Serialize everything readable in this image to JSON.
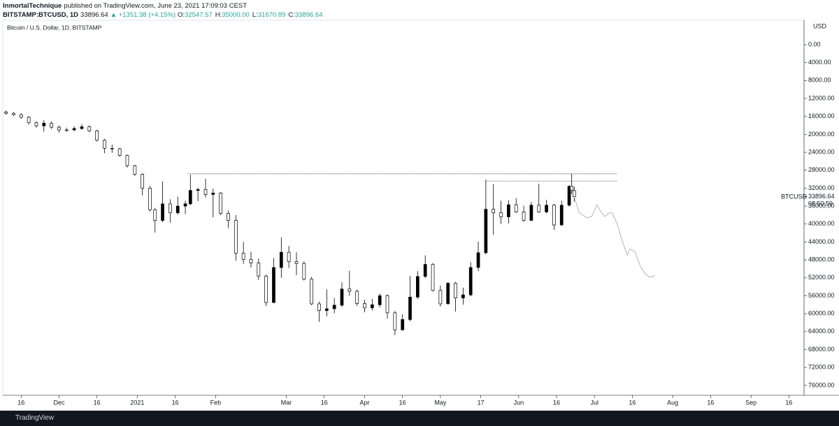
{
  "header": {
    "author": "InmortalTechnique",
    "published": "published on TradingView.com, June 23, 2021 17:09:03 CEST",
    "symbol": "BITSTAMP:BTCUSD, 1D",
    "last": "33896.64",
    "change": "▲ +1351.38 (+4.15%)",
    "ohlc": [
      {
        "label": "O:",
        "value": "32547.57"
      },
      {
        "label": "H:",
        "value": "35000.00"
      },
      {
        "label": "L:",
        "value": "31670.89"
      },
      {
        "label": "C:",
        "value": "33896.64"
      }
    ]
  },
  "chart_data": {
    "type": "candlestick",
    "title": "Bitcoin / U.S. Dollar, 1D, BITSTAMP",
    "currency": "USD",
    "symbol": "BTCUSD",
    "countdown": "08:50:59",
    "x": [
      "2020-11-10",
      "2020-11-13",
      "2020-11-16",
      "2020-11-19",
      "2020-11-22",
      "2020-11-25",
      "2020-11-28",
      "2020-12-01",
      "2020-12-04",
      "2020-12-07",
      "2020-12-10",
      "2020-12-13",
      "2020-12-16",
      "2020-12-19",
      "2020-12-22",
      "2020-12-25",
      "2020-12-28",
      "2020-12-31",
      "2021-01-03",
      "2021-01-06",
      "2021-01-08",
      "2021-01-11",
      "2021-01-14",
      "2021-01-17",
      "2021-01-20",
      "2021-01-22",
      "2021-01-25",
      "2021-01-28",
      "2021-01-31",
      "2021-02-03",
      "2021-02-06",
      "2021-02-09",
      "2021-02-12",
      "2021-02-15",
      "2021-02-18",
      "2021-02-21",
      "2021-02-24",
      "2021-02-27",
      "2021-03-02",
      "2021-03-05",
      "2021-03-08",
      "2021-03-11",
      "2021-03-14",
      "2021-03-17",
      "2021-03-20",
      "2021-03-23",
      "2021-03-26",
      "2021-03-29",
      "2021-04-01",
      "2021-04-04",
      "2021-04-07",
      "2021-04-10",
      "2021-04-13",
      "2021-04-16",
      "2021-04-19",
      "2021-04-22",
      "2021-04-25",
      "2021-04-28",
      "2021-05-01",
      "2021-05-04",
      "2021-05-07",
      "2021-05-10",
      "2021-05-13",
      "2021-05-16",
      "2021-05-19",
      "2021-05-22",
      "2021-05-25",
      "2021-05-28",
      "2021-05-31",
      "2021-06-03",
      "2021-06-06",
      "2021-06-09",
      "2021-06-12",
      "2021-06-15",
      "2021-06-18",
      "2021-06-21",
      "2021-06-22",
      "2021-06-23"
    ],
    "open": [
      15000,
      15300,
      15600,
      16200,
      17400,
      18100,
      17500,
      18400,
      19000,
      19000,
      18700,
      18300,
      19200,
      21300,
      23100,
      23200,
      24700,
      27000,
      28900,
      32000,
      36800,
      39200,
      35500,
      37500,
      36000,
      35500,
      32500,
      32300,
      33400,
      33100,
      37600,
      39200,
      46500,
      47900,
      48700,
      51600,
      57500,
      49700,
      46300,
      48400,
      48800,
      52300,
      57800,
      59300,
      58900,
      58100,
      54500,
      55000,
      57700,
      58700,
      58000,
      56000,
      59800,
      63600,
      61300,
      56300,
      51700,
      49000,
      54800,
      57800,
      53200,
      56500,
      55800,
      49700,
      46400,
      36700,
      37500,
      38400,
      35700,
      37300,
      39200,
      35800,
      37300,
      35800,
      40200,
      35800,
      31600,
      32547.57
    ],
    "high": [
      15600,
      15900,
      16500,
      17800,
      18500,
      19400,
      18800,
      19600,
      19400,
      19300,
      19000,
      19500,
      21600,
      24200,
      24100,
      25000,
      27400,
      29300,
      33600,
      37200,
      41900,
      39600,
      39700,
      37900,
      37800,
      35800,
      34900,
      34100,
      38500,
      38000,
      40900,
      48200,
      48900,
      49700,
      52500,
      58300,
      57700,
      52000,
      49800,
      51400,
      52600,
      58100,
      61800,
      60600,
      59900,
      58500,
      56000,
      58300,
      59700,
      59300,
      58600,
      61100,
      64800,
      63800,
      61700,
      56700,
      52000,
      55100,
      58400,
      57900,
      59500,
      58000,
      56100,
      50500,
      46800,
      42400,
      40000,
      39900,
      37500,
      39500,
      39300,
      37500,
      37600,
      41300,
      40400,
      36100,
      33300,
      35000
    ],
    "low": [
      14700,
      15000,
      15300,
      15900,
      17100,
      16800,
      17100,
      18000,
      18500,
      18200,
      17700,
      18000,
      19000,
      21000,
      22300,
      23000,
      24500,
      26800,
      28700,
      31500,
      36400,
      30500,
      34500,
      33900,
      34800,
      29000,
      31900,
      29900,
      32100,
      32900,
      37000,
      38000,
      44000,
      46200,
      47700,
      51300,
      47600,
      43000,
      44900,
      46300,
      48300,
      51800,
      57300,
      54600,
      56500,
      53000,
      50400,
      54600,
      56900,
      56700,
      55500,
      55700,
      59400,
      60100,
      51600,
      50500,
      47000,
      48700,
      53700,
      53000,
      52900,
      54200,
      48500,
      43900,
      30100,
      31100,
      34800,
      34700,
      34200,
      35900,
      35100,
      31000,
      34600,
      35500,
      34800,
      31300,
      28800,
      31670.89
    ],
    "close": [
      15300,
      15600,
      16200,
      17400,
      18100,
      17500,
      18400,
      19000,
      19000,
      18700,
      18300,
      19200,
      21300,
      23100,
      23200,
      24700,
      27000,
      28900,
      32000,
      36800,
      39200,
      35500,
      37500,
      36000,
      35500,
      32500,
      32300,
      33400,
      33100,
      37600,
      39200,
      46500,
      47900,
      48700,
      51600,
      57500,
      49700,
      46300,
      48400,
      48800,
      52300,
      57800,
      59300,
      58900,
      58100,
      54500,
      55000,
      57700,
      58700,
      58000,
      56000,
      59800,
      63600,
      61300,
      56300,
      51700,
      49000,
      54800,
      57800,
      53200,
      56500,
      55800,
      49700,
      46400,
      36700,
      37500,
      38400,
      35700,
      37300,
      39200,
      35800,
      37300,
      35800,
      40200,
      35800,
      31600,
      32500,
      33896.64
    ],
    "up_color": "#ffffff",
    "down_color": "#000000",
    "xlim": [
      "2020-11-09",
      "2021-09-22"
    ],
    "xticks": [
      {
        "value": "2020-11-16",
        "label": "16"
      },
      {
        "value": "2020-12-01",
        "label": "Dec"
      },
      {
        "value": "2020-12-16",
        "label": "16"
      },
      {
        "value": "2021-01-01",
        "label": "2021"
      },
      {
        "value": "2021-01-16",
        "label": "16"
      },
      {
        "value": "2021-02-01",
        "label": "Feb"
      },
      {
        "value": "2021-03-01",
        "label": "Mar"
      },
      {
        "value": "2021-03-16",
        "label": "16"
      },
      {
        "value": "2021-04-01",
        "label": "Apr"
      },
      {
        "value": "2021-04-16",
        "label": "16"
      },
      {
        "value": "2021-05-01",
        "label": "May"
      },
      {
        "value": "2021-05-17",
        "label": "17"
      },
      {
        "value": "2021-06-01",
        "label": "Jun"
      },
      {
        "value": "2021-06-16",
        "label": "16"
      },
      {
        "value": "2021-07-01",
        "label": "Jul"
      },
      {
        "value": "2021-07-16",
        "label": "16"
      },
      {
        "value": "2021-08-01",
        "label": "Aug"
      },
      {
        "value": "2021-08-16",
        "label": "16"
      },
      {
        "value": "2021-09-01",
        "label": "Sep"
      },
      {
        "value": "2021-09-16",
        "label": "16"
      }
    ],
    "ylim": [
      -5300,
      78200
    ],
    "inverted": true,
    "yticks": [
      {
        "value": 0,
        "label": "0.00"
      },
      {
        "value": 4000,
        "label": "4000.00"
      },
      {
        "value": 8000,
        "label": "8000.00"
      },
      {
        "value": 12000,
        "label": "12000.00"
      },
      {
        "value": 16000,
        "label": "16000.00"
      },
      {
        "value": 20000,
        "label": "20000.00"
      },
      {
        "value": 24000,
        "label": "24000.00"
      },
      {
        "value": 28000,
        "label": "28000.00"
      },
      {
        "value": 32000,
        "label": "32000.00"
      },
      {
        "value": 36000,
        "label": "36000.00"
      },
      {
        "value": 40000,
        "label": "40000.00"
      },
      {
        "value": 44000,
        "label": "44000.00"
      },
      {
        "value": 48000,
        "label": "48000.00"
      },
      {
        "value": 52000,
        "label": "52000.00"
      },
      {
        "value": 56000,
        "label": "56000.00"
      },
      {
        "value": 60000,
        "label": "60000.00"
      },
      {
        "value": 64000,
        "label": "64000.00"
      },
      {
        "value": 68000,
        "label": "68000.00"
      },
      {
        "value": 72000,
        "label": "72000.00"
      },
      {
        "value": 76000,
        "label": "76000.00"
      }
    ],
    "levels": [
      {
        "value": 28800,
        "from": "2021-01-21",
        "to": "2021-07-10"
      },
      {
        "value": 30400,
        "from": "2021-05-19",
        "to": "2021-07-10"
      }
    ],
    "projection": {
      "color": "#b2b5be",
      "x": [
        "2021-06-23",
        "2021-06-25",
        "2021-06-28",
        "2021-06-30",
        "2021-07-02",
        "2021-07-03",
        "2021-07-05",
        "2021-07-07",
        "2021-07-08",
        "2021-07-10",
        "2021-07-12",
        "2021-07-14",
        "2021-07-15",
        "2021-07-17",
        "2021-07-19",
        "2021-07-21",
        "2021-07-23",
        "2021-07-25"
      ],
      "values": [
        33900,
        37500,
        38600,
        38300,
        35700,
        36800,
        38300,
        37500,
        37500,
        39900,
        43800,
        46900,
        45600,
        46100,
        49200,
        51100,
        51900,
        51500
      ]
    }
  },
  "footer": {
    "brand": "TradingView"
  }
}
